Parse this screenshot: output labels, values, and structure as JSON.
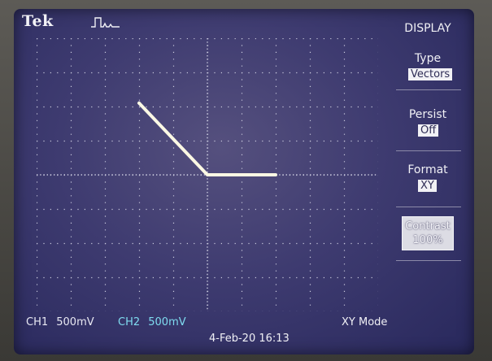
{
  "brand": "Tek",
  "trigger_icon": "trigger-pulse-icon",
  "menu": {
    "title": "DISPLAY",
    "type": {
      "label": "Type",
      "value": "Vectors"
    },
    "persist": {
      "label": "Persist",
      "value": "Off"
    },
    "format": {
      "label": "Format",
      "value": "XY"
    },
    "contrast": {
      "label": "Contrast",
      "value": "100%"
    }
  },
  "channels": {
    "ch1": {
      "label": "CH1",
      "scale": "500mV",
      "color": "#e8e8f2"
    },
    "ch2": {
      "label": "CH2",
      "scale": "500mV",
      "color": "#7fdcf0"
    }
  },
  "mode": "XY Mode",
  "timestamp": "4-Feb-20 16:13",
  "colors": {
    "screen_bg": "#3e3b70",
    "grid": "#c8c8dc",
    "trace": "#fbf8e4",
    "menu_value_bg": "#f1f1f5"
  },
  "display": {
    "divisions": {
      "x": 10,
      "y": 8
    },
    "trace_divisions": [
      [
        -2.0,
        2.1
      ],
      [
        0.0,
        0.0
      ],
      [
        2.0,
        0.0
      ]
    ]
  }
}
